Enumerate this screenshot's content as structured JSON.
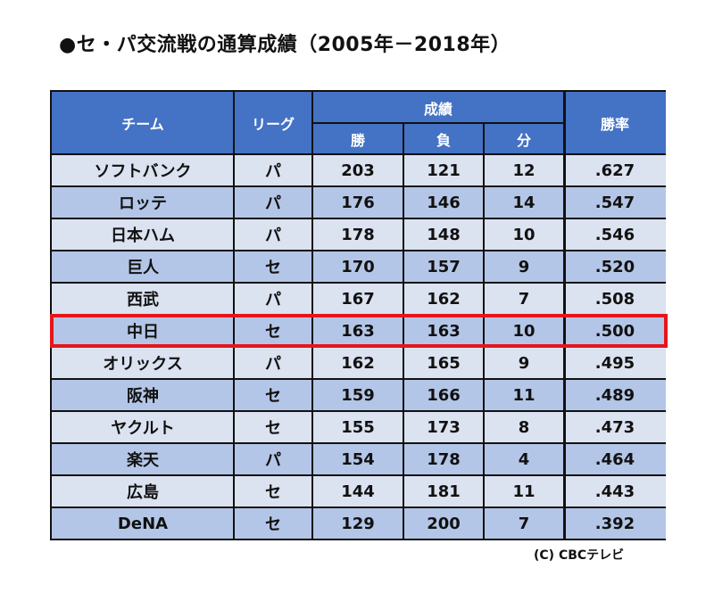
{
  "title": "●セ・パ交流戦の通算成績（2005年－2018年）",
  "headers": {
    "team": "チーム",
    "league": "リーグ",
    "record": "成績",
    "wins": "勝",
    "losses": "負",
    "draws": "分",
    "pct": "勝率"
  },
  "rows": [
    {
      "team": "ソフトバンク",
      "league": "パ",
      "wins": "203",
      "losses": "121",
      "draws": "12",
      "pct": ".627"
    },
    {
      "team": "ロッテ",
      "league": "パ",
      "wins": "176",
      "losses": "146",
      "draws": "14",
      "pct": ".547"
    },
    {
      "team": "日本ハム",
      "league": "パ",
      "wins": "178",
      "losses": "148",
      "draws": "10",
      "pct": ".546"
    },
    {
      "team": "巨人",
      "league": "セ",
      "wins": "170",
      "losses": "157",
      "draws": "9",
      "pct": ".520"
    },
    {
      "team": "西武",
      "league": "パ",
      "wins": "167",
      "losses": "162",
      "draws": "7",
      "pct": ".508"
    },
    {
      "team": "中日",
      "league": "セ",
      "wins": "163",
      "losses": "163",
      "draws": "10",
      "pct": ".500"
    },
    {
      "team": "オリックス",
      "league": "パ",
      "wins": "162",
      "losses": "165",
      "draws": "9",
      "pct": ".495"
    },
    {
      "team": "阪神",
      "league": "セ",
      "wins": "159",
      "losses": "166",
      "draws": "11",
      "pct": ".489"
    },
    {
      "team": "ヤクルト",
      "league": "セ",
      "wins": "155",
      "losses": "173",
      "draws": "8",
      "pct": ".473"
    },
    {
      "team": "楽天",
      "league": "パ",
      "wins": "154",
      "losses": "178",
      "draws": "4",
      "pct": ".464"
    },
    {
      "team": "広島",
      "league": "セ",
      "wins": "144",
      "losses": "181",
      "draws": "11",
      "pct": ".443"
    },
    {
      "team": "DeNA",
      "league": "セ",
      "wins": "129",
      "losses": "200",
      "draws": "7",
      "pct": ".392"
    }
  ],
  "highlight_team": "中日",
  "colors": {
    "header": "#4472c4",
    "row_light": "#dbe2f0",
    "row_dark": "#b4c6e7",
    "highlight": "#e5161b"
  },
  "credit": "(C) CBCテレビ"
}
